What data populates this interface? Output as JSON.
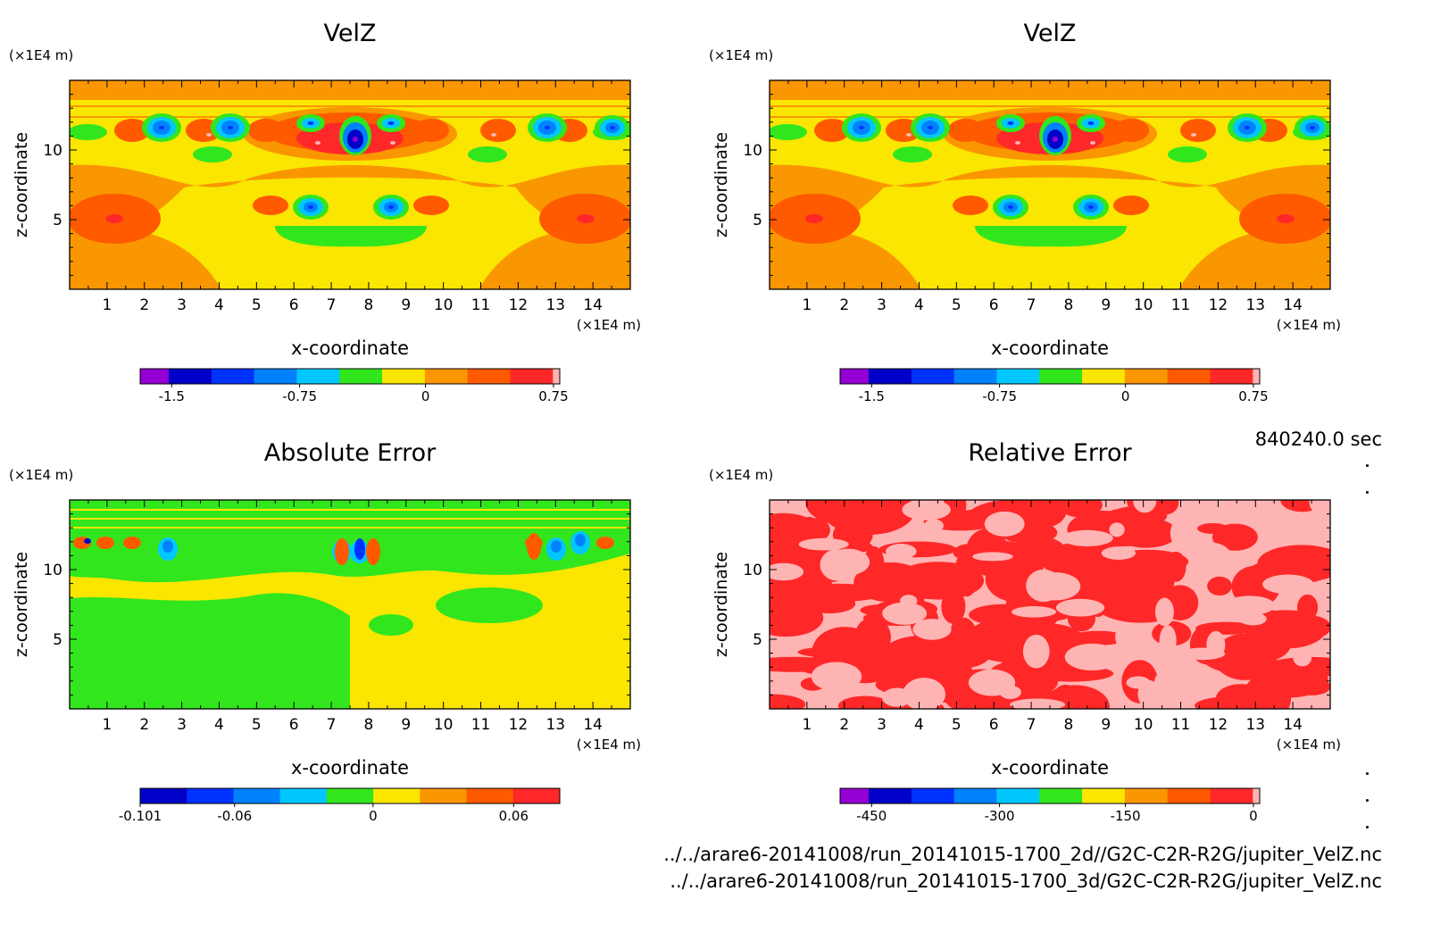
{
  "colors": {
    "velz": [
      "#9400d3",
      "#0000c8",
      "#0032ff",
      "#0082ff",
      "#00c8ff",
      "#32e61e",
      "#fae600",
      "#fa9600",
      "#ff5a00",
      "#ff2828",
      "#ffb4b4"
    ],
    "abs": [
      "#0000c8",
      "#0032ff",
      "#0082ff",
      "#00c8ff",
      "#32e61e",
      "#fae600",
      "#fa9600",
      "#ff5a00",
      "#ff2828"
    ],
    "rel": [
      "#9400d3",
      "#0000c8",
      "#0032ff",
      "#0082ff",
      "#00c8ff",
      "#32e61e",
      "#fae600",
      "#fa9600",
      "#ff5a00",
      "#ff2828",
      "#ffb4b4"
    ]
  },
  "time_label": "840240.0 sec",
  "file_1": "../../arare6-20141008/run_20141015-1700_2d//G2C-C2R-R2G/jupiter_VelZ.nc",
  "file_2": "../../arare6-20141008/run_20141015-1700_3d/G2C-C2R-R2G/jupiter_VelZ.nc",
  "chart_data": [
    {
      "type": "heatmap",
      "title": "VelZ",
      "xlabel": "x-coordinate",
      "ylabel": "z-coordinate",
      "x_unit": "(×1E4 m)",
      "y_unit": "(×1E4 m)",
      "xlim": [
        0,
        15
      ],
      "ylim": [
        0,
        15
      ],
      "xticks": [
        1,
        2,
        3,
        4,
        5,
        6,
        7,
        8,
        9,
        10,
        11,
        12,
        13,
        14
      ],
      "yticks": [
        5,
        10
      ],
      "colorbar_ticks": [
        "-1.5",
        "-0.75",
        "0",
        "0.75"
      ],
      "colorbar_levels": 11,
      "field": "velz"
    },
    {
      "type": "heatmap",
      "title": "VelZ",
      "xlabel": "x-coordinate",
      "ylabel": "z-coordinate",
      "x_unit": "(×1E4 m)",
      "y_unit": "(×1E4 m)",
      "xlim": [
        0,
        15
      ],
      "ylim": [
        0,
        15
      ],
      "xticks": [
        1,
        2,
        3,
        4,
        5,
        6,
        7,
        8,
        9,
        10,
        11,
        12,
        13,
        14
      ],
      "yticks": [
        5,
        10
      ],
      "colorbar_ticks": [
        "-1.5",
        "-0.75",
        "0",
        "0.75"
      ],
      "colorbar_levels": 11,
      "field": "velz"
    },
    {
      "type": "heatmap",
      "title": "Absolute Error",
      "xlabel": "x-coordinate",
      "ylabel": "z-coordinate",
      "x_unit": "(×1E4 m)",
      "y_unit": "(×1E4 m)",
      "xlim": [
        0,
        15
      ],
      "ylim": [
        0,
        15
      ],
      "xticks": [
        1,
        2,
        3,
        4,
        5,
        6,
        7,
        8,
        9,
        10,
        11,
        12,
        13,
        14
      ],
      "yticks": [
        5,
        10
      ],
      "colorbar_ticks": [
        "-0.101",
        "-0.06",
        "0",
        "0.06"
      ],
      "colorbar_levels": 9,
      "field": "abs"
    },
    {
      "type": "heatmap",
      "title": "Relative Error",
      "xlabel": "x-coordinate",
      "ylabel": "z-coordinate",
      "x_unit": "(×1E4 m)",
      "y_unit": "(×1E4 m)",
      "xlim": [
        0,
        15
      ],
      "ylim": [
        0,
        15
      ],
      "xticks": [
        1,
        2,
        3,
        4,
        5,
        6,
        7,
        8,
        9,
        10,
        11,
        12,
        13,
        14
      ],
      "yticks": [
        5,
        10
      ],
      "colorbar_ticks": [
        "-450",
        "-300",
        "-150",
        "0"
      ],
      "colorbar_levels": 11,
      "field": "rel"
    }
  ]
}
